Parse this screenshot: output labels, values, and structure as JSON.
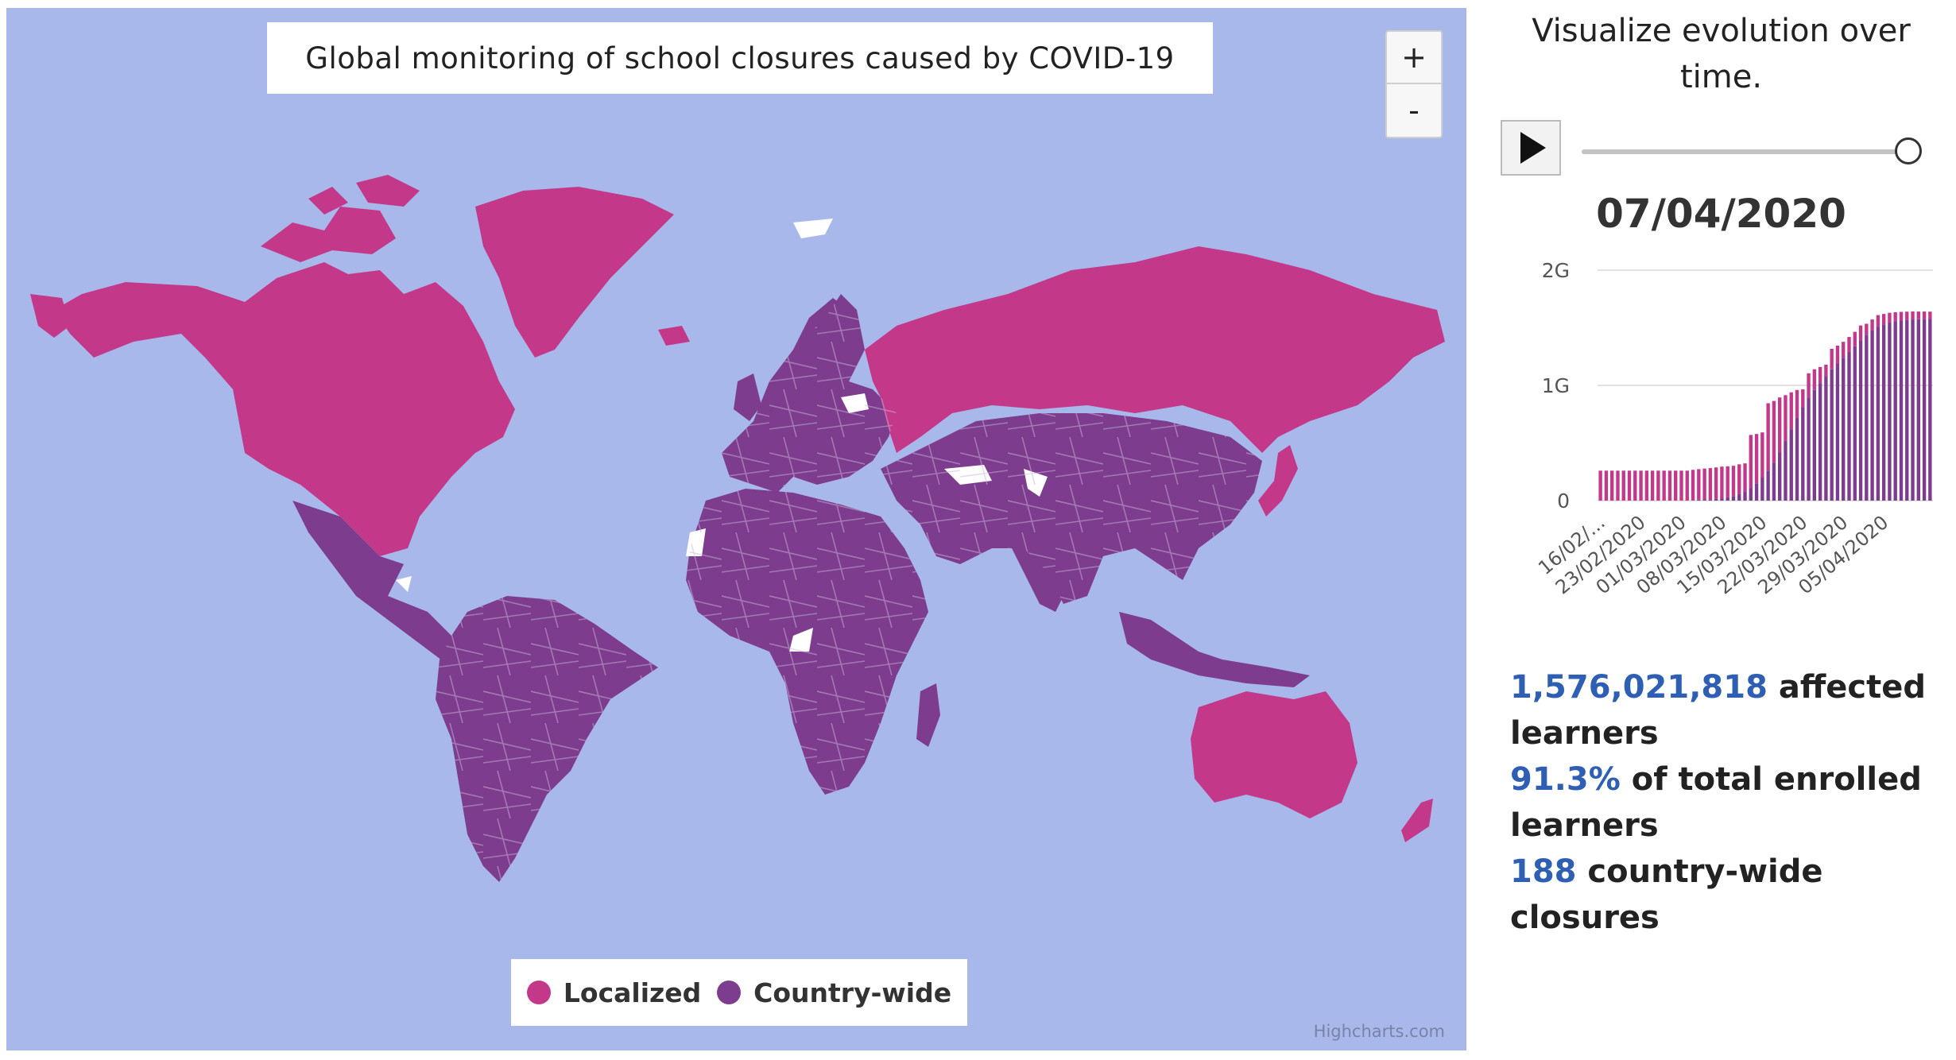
{
  "map": {
    "title": "Global monitoring of school closures caused by COVID-19",
    "zoom_in_label": "+",
    "zoom_out_label": "-",
    "legend": [
      {
        "label": "Localized",
        "color": "#c4388a"
      },
      {
        "label": "Country-wide",
        "color": "#7d3c8e"
      }
    ],
    "credits": "Highcharts.com",
    "colors": {
      "ocean": "#a9b8eb",
      "localized": "#c4388a",
      "country_wide": "#7d3c8e",
      "no_data": "#ffffff"
    }
  },
  "side": {
    "heading_line1": "Visualize evolution over",
    "heading_line2": "time.",
    "play_icon": "play-icon",
    "current_date": "07/04/2020",
    "stats": {
      "affected_number": "1,576,021,818",
      "affected_text": " affected",
      "affected_text2": "learners",
      "percent_number": "91.3%",
      "percent_text": " of total enrolled",
      "percent_text2": "learners",
      "closures_number": "188",
      "closures_text": " country-wide closures"
    }
  },
  "chart_data": {
    "type": "bar",
    "stacked": true,
    "title": "",
    "xlabel": "",
    "ylabel": "",
    "ylim": [
      0,
      2000000000
    ],
    "y_ticks": [
      "0",
      "1G",
      "2G"
    ],
    "x_tick_labels": [
      "16/02/...",
      "23/02/2020",
      "01/03/2020",
      "08/03/2020",
      "15/03/2020",
      "22/03/2020",
      "29/03/2020",
      "05/04/2020"
    ],
    "series": [
      {
        "name": "Country-wide",
        "color": "#7d3c8e",
        "values": [
          0,
          0,
          0,
          0,
          0,
          0,
          0,
          0,
          0,
          0,
          0,
          0,
          0,
          0,
          0,
          0,
          5,
          8,
          10,
          12,
          15,
          20,
          30,
          40,
          60,
          80,
          110,
          150,
          200,
          260,
          330,
          420,
          520,
          620,
          720,
          810,
          890,
          960,
          1020,
          1080,
          1140,
          1190,
          1240,
          1290,
          1340,
          1390,
          1440,
          1480,
          1510,
          1530,
          1545,
          1555,
          1562,
          1568,
          1572,
          1574,
          1575,
          1576
        ]
      },
      {
        "name": "Localized",
        "color": "#c4388a",
        "values": [
          260,
          260,
          260,
          260,
          260,
          260,
          260,
          260,
          260,
          260,
          260,
          260,
          260,
          260,
          260,
          260,
          262,
          265,
          268,
          270,
          273,
          275,
          268,
          262,
          255,
          243,
          460,
          428,
          392,
          585,
          535,
          475,
          395,
          320,
          240,
          156,
          215,
          180,
          140,
          100,
          178,
          155,
          138,
          130,
          125,
          130,
          95,
          92,
          100,
          90,
          85,
          80,
          76,
          72,
          70,
          67,
          66,
          64
        ]
      }
    ]
  }
}
